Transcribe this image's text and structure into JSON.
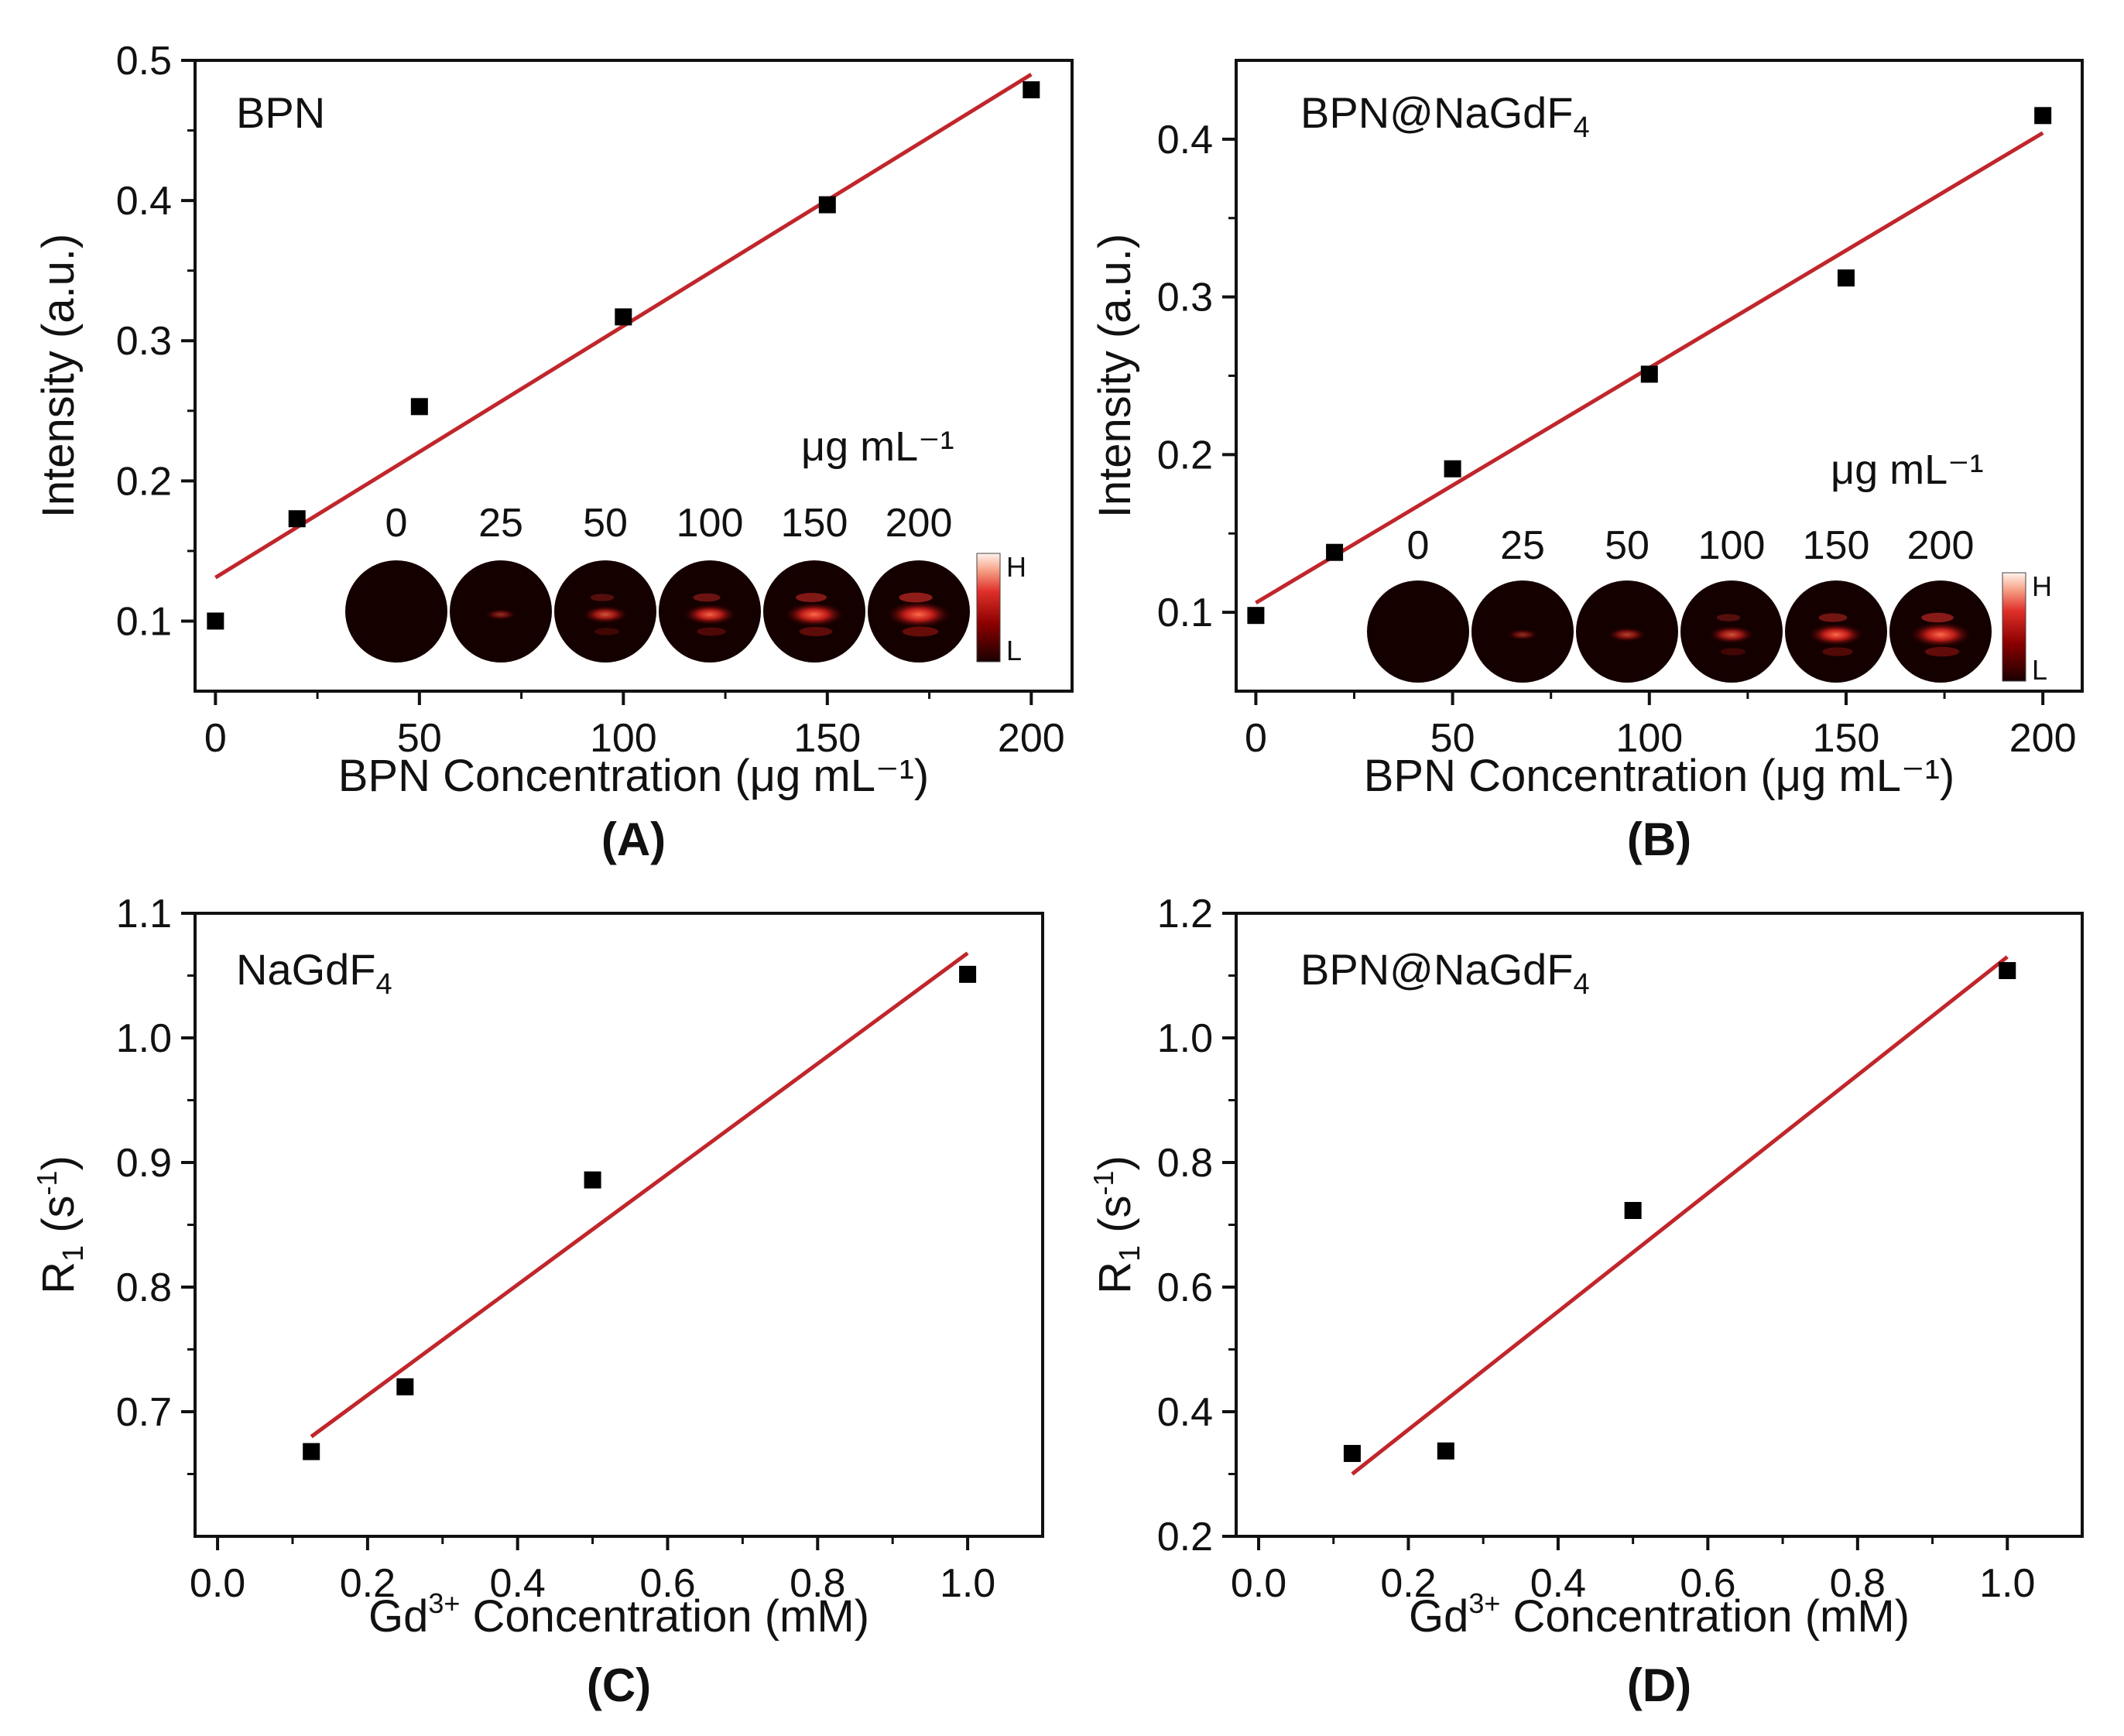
{
  "figure": {
    "colors": {
      "fit_line": "#c0262b",
      "marker": "#000000",
      "axis": "#111111"
    }
  },
  "chart_data": [
    {
      "id": "A",
      "type": "scatter",
      "panel_label": "(A)",
      "title": "BPN",
      "xlabel": "BPN Concentration (μg mL⁻¹)",
      "ylabel": "Intensity (a.u.)",
      "xlim": [
        -5,
        210
      ],
      "ylim": [
        0.05,
        0.5
      ],
      "xticks": [
        0,
        50,
        100,
        150,
        200
      ],
      "xtick_labels": [
        "0",
        "50",
        "100",
        "150",
        "200"
      ],
      "yticks": [
        0.1,
        0.2,
        0.3,
        0.4,
        0.5
      ],
      "ytick_labels": [
        "0.1",
        "0.2",
        "0.3",
        "0.4",
        "0.5"
      ],
      "x": [
        0,
        20,
        50,
        100,
        150,
        200
      ],
      "y": [
        0.1,
        0.173,
        0.253,
        0.317,
        0.397,
        0.479
      ],
      "fit": {
        "x": [
          0,
          200
        ],
        "y": [
          0.131,
          0.49
        ]
      },
      "inset": {
        "unit": "μg mL⁻¹",
        "concentrations": [
          "0",
          "25",
          "50",
          "100",
          "150",
          "200"
        ],
        "intensities": [
          0.0,
          0.15,
          0.45,
          0.6,
          0.75,
          0.85
        ],
        "scale_high": "H",
        "scale_low": "L"
      }
    },
    {
      "id": "B",
      "type": "scatter",
      "panel_label": "(B)",
      "title": "BPN@NaGdF",
      "title_sub": "4",
      "xlabel": "BPN Concentration (μg mL⁻¹)",
      "ylabel": "Intensity (a.u.)",
      "xlim": [
        -5,
        210
      ],
      "ylim": [
        0.05,
        0.45
      ],
      "xticks": [
        0,
        50,
        100,
        150,
        200
      ],
      "xtick_labels": [
        "0",
        "50",
        "100",
        "150",
        "200"
      ],
      "yticks": [
        0.1,
        0.2,
        0.3,
        0.4
      ],
      "ytick_labels": [
        "0.1",
        "0.2",
        "0.3",
        "0.4"
      ],
      "x": [
        0,
        20,
        50,
        100,
        150,
        200
      ],
      "y": [
        0.098,
        0.138,
        0.191,
        0.251,
        0.312,
        0.415
      ],
      "fit": {
        "x": [
          0,
          200
        ],
        "y": [
          0.106,
          0.404
        ]
      },
      "inset": {
        "unit": "μg mL⁻¹",
        "concentrations": [
          "0",
          "25",
          "50",
          "100",
          "150",
          "200"
        ],
        "intensities": [
          0.0,
          0.15,
          0.3,
          0.45,
          0.65,
          0.8
        ],
        "scale_high": "H",
        "scale_low": "L"
      }
    },
    {
      "id": "C",
      "type": "scatter",
      "panel_label": "(C)",
      "title": "NaGdF",
      "title_sub": "4",
      "xlabel_parts": [
        "Gd",
        "3+",
        " Concentration (mM)"
      ],
      "ylabel_parts": [
        "R",
        "1",
        " (s",
        "-1",
        ")"
      ],
      "xlim": [
        -0.03,
        1.1
      ],
      "ylim": [
        0.6,
        1.1
      ],
      "xticks": [
        0.0,
        0.2,
        0.4,
        0.6,
        0.8,
        1.0
      ],
      "xtick_labels": [
        "0.0",
        "0.2",
        "0.4",
        "0.6",
        "0.8",
        "1.0"
      ],
      "yticks": [
        0.7,
        0.8,
        0.9,
        1.0,
        1.1
      ],
      "ytick_labels": [
        "0.7",
        "0.8",
        "0.9",
        "1.0",
        "1.1"
      ],
      "x": [
        0.125,
        0.25,
        0.5,
        1.0
      ],
      "y": [
        0.668,
        0.72,
        0.886,
        1.051
      ],
      "fit": {
        "x": [
          0.125,
          1.0
        ],
        "y": [
          0.68,
          1.068
        ]
      }
    },
    {
      "id": "D",
      "type": "scatter",
      "panel_label": "(D)",
      "title": "BPN@NaGdF",
      "title_sub": "4",
      "xlabel_parts": [
        "Gd",
        "3+",
        " Concentration (mM)"
      ],
      "ylabel_parts": [
        "R",
        "1",
        " (s",
        "-1",
        ")"
      ],
      "xlim": [
        -0.03,
        1.1
      ],
      "ylim": [
        0.2,
        1.2
      ],
      "xticks": [
        0.0,
        0.2,
        0.4,
        0.6,
        0.8,
        1.0
      ],
      "xtick_labels": [
        "0.0",
        "0.2",
        "0.4",
        "0.6",
        "0.8",
        "1.0"
      ],
      "yticks": [
        0.2,
        0.4,
        0.6,
        0.8,
        1.0,
        1.2
      ],
      "ytick_labels": [
        "0.2",
        "0.4",
        "0.6",
        "0.8",
        "1.0",
        "1.2"
      ],
      "x": [
        0.125,
        0.25,
        0.5,
        1.0
      ],
      "y": [
        0.333,
        0.337,
        0.723,
        1.108
      ],
      "fit": {
        "x": [
          0.125,
          1.0
        ],
        "y": [
          0.3,
          1.13
        ]
      }
    }
  ]
}
